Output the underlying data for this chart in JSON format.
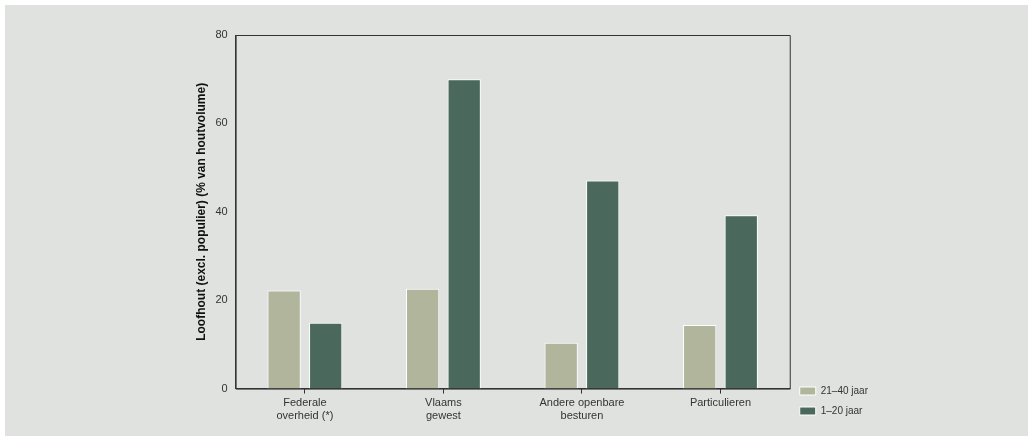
{
  "chart_data": {
    "type": "bar",
    "ylabel": "Loofhout (excl. populier) (% van houtvolume)",
    "categories": [
      "Federale\noverheid (*)",
      "Vlaams\ngewest",
      "Andere openbare\nbesturen",
      "Particulieren"
    ],
    "series": [
      {
        "name": "21–40 jaar",
        "color": "#b0b59c",
        "values": [
          22.2,
          22.6,
          10.4,
          14.4
        ]
      },
      {
        "name": "1–20 jaar",
        "color": "#4a695c",
        "values": [
          14.9,
          70.0,
          47.1,
          39.2
        ]
      }
    ],
    "ylim": [
      0,
      80
    ],
    "yticks": [
      0,
      20,
      40,
      60,
      80
    ],
    "grid": false,
    "legend": "bottom right"
  }
}
